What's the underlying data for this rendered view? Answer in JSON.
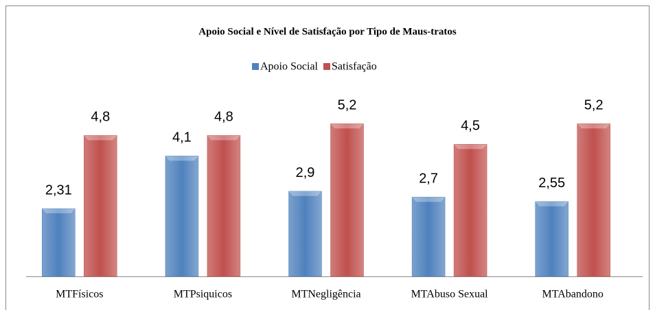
{
  "chart_data": {
    "type": "bar",
    "title": "Apoio Social e Nível de Satisfação por Tipo de Maus-tratos",
    "categories": [
      "MTFísicos",
      "MTPsiquicos",
      "MTNegligência",
      "MTAbuso Sexual",
      "MTAbandono"
    ],
    "series": [
      {
        "name": "Apoio Social",
        "color": "#4f81bd",
        "values": [
          2.31,
          4.1,
          2.9,
          2.7,
          2.55
        ],
        "value_labels": [
          "2,31",
          "4,1",
          "2,9",
          "2,7",
          "2,55"
        ]
      },
      {
        "name": "Satisfação",
        "color": "#c0504d",
        "values": [
          4.8,
          4.8,
          5.2,
          4.5,
          5.2
        ],
        "value_labels": [
          "4,8",
          "4,8",
          "5,2",
          "4,5",
          "5,2"
        ]
      }
    ],
    "ylim": [
      0,
      6
    ],
    "legend": "top"
  }
}
